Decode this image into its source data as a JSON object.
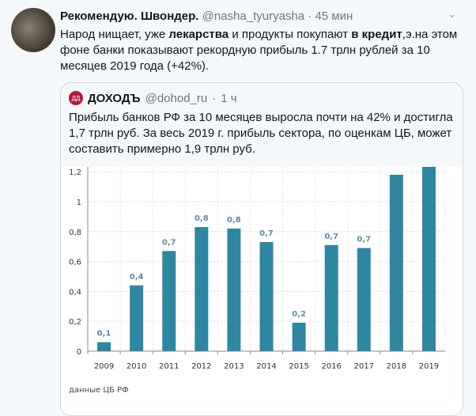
{
  "tweet": {
    "author_name": "Рекомендую. Швондер.",
    "handle": "@nasha_tyuryasha",
    "separator": "·",
    "time": "45 мин",
    "text_parts": [
      {
        "t": "Народ нищает, уже ",
        "b": false
      },
      {
        "t": "лекарства",
        "b": true
      },
      {
        "t": " и продукты покупают ",
        "b": false
      },
      {
        "t": "в кредит",
        "b": true
      },
      {
        "t": ",э.на этом фоне банки показывают рекордную прибыль 1.7 трлн рублей за 10 месяцев 2019 года (+42%).",
        "b": false
      }
    ]
  },
  "quoted": {
    "author_name": "ДОХОДЪ",
    "handle": "@dohod_ru",
    "separator": "·",
    "time": "1 ч",
    "logo_text": "ДД",
    "text": "Прибыль банков РФ за 10 месяцев выросла почти на 42% и достигла 1,7 трлн руб. За весь 2019 г. прибыль сектора, по оценкам ЦБ, может составить примерно 1,9 трлн руб."
  },
  "chart_data": {
    "type": "bar",
    "categories": [
      "2009",
      "2010",
      "2011",
      "2012",
      "2013",
      "2014",
      "2015",
      "2016",
      "2017",
      "2018",
      "2019"
    ],
    "values": [
      0.06,
      0.44,
      0.67,
      0.83,
      0.82,
      0.73,
      0.19,
      0.71,
      0.69,
      1.18,
      1.25
    ],
    "data_labels": [
      "0,1",
      "0,4",
      "0,7",
      "0,8",
      "0,8",
      "0,7",
      "0,2",
      "0,7",
      "0,7",
      "",
      ""
    ],
    "yticks": [
      "0",
      "0,2",
      "0,4",
      "0,6",
      "0,8",
      "1",
      "1,2"
    ],
    "ylim": [
      0,
      1.25
    ],
    "grid": true,
    "bar_color": "#2e87a0",
    "source": "данные ЦБ РФ"
  }
}
